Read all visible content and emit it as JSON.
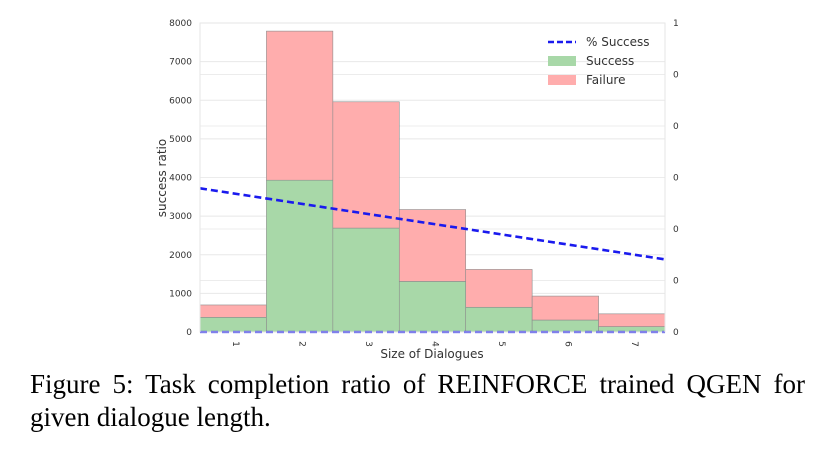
{
  "chart_data": {
    "type": "bar",
    "stacked": true,
    "categories": [
      "1",
      "2",
      "3",
      "4",
      "5",
      "6",
      "7"
    ],
    "series": [
      {
        "name": "Success",
        "color": "#a8d8a8",
        "values": [
          380,
          3930,
          2690,
          1310,
          640,
          310,
          140
        ]
      },
      {
        "name": "Failure",
        "color": "#ffadad",
        "values": [
          320,
          3860,
          3270,
          1860,
          980,
          620,
          330
        ]
      }
    ],
    "line_series": {
      "name": "% Success",
      "color": "#1a1aee",
      "style": "dashed",
      "x": [
        0.5,
        7.5
      ],
      "y": [
        3720,
        1880
      ]
    },
    "baseline_line": {
      "color": "#1a1aee",
      "style": "dashed",
      "y": 0
    },
    "xlabel": "Size of Dialogues",
    "ylabel": "success ratio",
    "ylim": [
      0,
      8000
    ],
    "yticks": [
      "0",
      "1000",
      "2000",
      "3000",
      "4000",
      "5000",
      "6000",
      "7000",
      "8000"
    ],
    "right_yticks": [
      "0",
      "0",
      "0",
      "0",
      "0",
      "0",
      "1"
    ],
    "grid": true,
    "legend_position": "top-right"
  },
  "caption": "Figure 5:  Task completion ratio of REINFORCE trained QGEN for given dialogue length."
}
